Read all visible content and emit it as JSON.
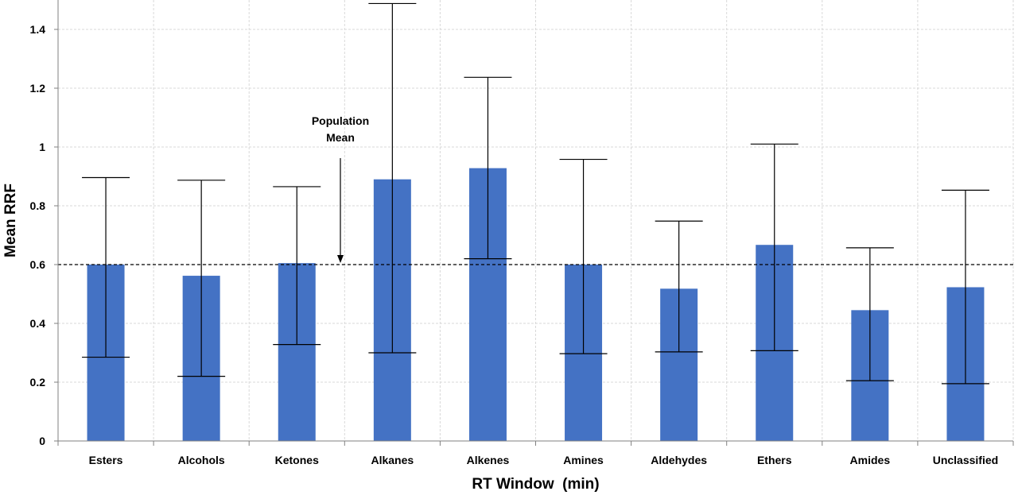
{
  "chart_data": {
    "type": "bar",
    "categories": [
      "Esters",
      "Alcohols",
      "Ketones",
      "Alkanes",
      "Alkenes",
      "Amines",
      "Aldehydes",
      "Ethers",
      "Amides",
      "Unclassified"
    ],
    "values": [
      0.6,
      0.562,
      0.605,
      0.89,
      0.928,
      0.6,
      0.518,
      0.667,
      0.445,
      0.523
    ],
    "error_low": [
      0.285,
      0.22,
      0.328,
      0.3,
      0.62,
      0.297,
      0.303,
      0.307,
      0.205,
      0.195
    ],
    "error_high": [
      0.896,
      0.887,
      0.865,
      1.488,
      1.237,
      0.958,
      0.748,
      1.01,
      0.657,
      0.853
    ],
    "xlabel": "RT Window  (min)",
    "ylabel": "Mean RRF",
    "ylim": [
      0,
      1.5
    ],
    "yticks": [
      0,
      0.2,
      0.4,
      0.6,
      0.8,
      1.0,
      1.2,
      1.4
    ],
    "ytick_labels": [
      "0",
      "0.2",
      "0.4",
      "0.6",
      "0.8",
      "1",
      "1.2",
      "1.4"
    ],
    "bar_color": "#4472C4",
    "grid": true,
    "reference_line": {
      "value": 0.6
    },
    "annotation": {
      "line1": "Population",
      "line2": "Mean"
    }
  }
}
